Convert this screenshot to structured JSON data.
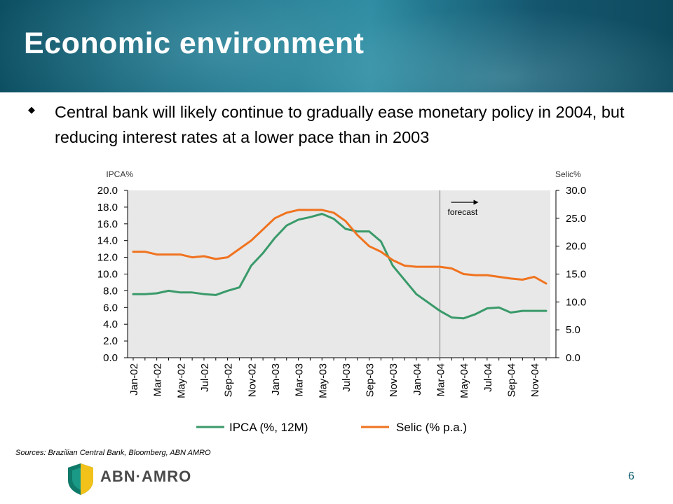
{
  "slide": {
    "title": "Economic environment",
    "bullet": "Central bank will likely continue to gradually ease monetary policy in 2004, but reducing interest rates at a lower pace than in 2003",
    "sources": "Sources: Brazilian Central Bank, Bloomberg, ABN AMRO",
    "page_number": "6",
    "logo_text": "ABN·AMRO"
  },
  "chart_data": {
    "type": "line",
    "title": "",
    "left_axis_label": "IPCA%",
    "right_axis_label": "Selic%",
    "left_ylim": [
      0,
      20
    ],
    "right_ylim": [
      0,
      30
    ],
    "left_ticks": [
      "20.0",
      "18.0",
      "16.0",
      "14.0",
      "12.0",
      "10.0",
      "8.0",
      "6.0",
      "4.0",
      "2.0",
      "0.0"
    ],
    "right_ticks": [
      "30.0",
      "25.0",
      "20.0",
      "15.0",
      "10.0",
      "5.0",
      "0.0"
    ],
    "categories": [
      "Jan-02",
      "Feb-02",
      "Mar-02",
      "Apr-02",
      "May-02",
      "Jun-02",
      "Jul-02",
      "Aug-02",
      "Sep-02",
      "Oct-02",
      "Nov-02",
      "Dec-02",
      "Jan-03",
      "Feb-03",
      "Mar-03",
      "Apr-03",
      "May-03",
      "Jun-03",
      "Jul-03",
      "Aug-03",
      "Sep-03",
      "Oct-03",
      "Nov-03",
      "Dec-03",
      "Jan-04",
      "Feb-04",
      "Mar-04",
      "Apr-04",
      "May-04",
      "Jun-04",
      "Jul-04",
      "Aug-04",
      "Sep-04",
      "Oct-04",
      "Nov-04",
      "Dec-04"
    ],
    "tick_labels": [
      "Jan-02",
      "Mar-02",
      "May-02",
      "Jul-02",
      "Sep-02",
      "Nov-02",
      "Jan-03",
      "Mar-03",
      "May-03",
      "Jul-03",
      "Sep-03",
      "Nov-03",
      "Jan-04",
      "Mar-04",
      "May-04",
      "Jul-04",
      "Sep-04",
      "Nov-04"
    ],
    "forecast_start": "Mar-04",
    "forecast_label": "forecast",
    "grid": false,
    "legend_position": "bottom",
    "colors": {
      "plot_bg": "#e8e8e8",
      "ipca": "#3a9a6a",
      "selic": "#f0731f",
      "divider": "#777777"
    },
    "series": [
      {
        "name": "IPCA (%, 12M)",
        "axis": "left",
        "values": [
          7.6,
          7.6,
          7.7,
          8.0,
          7.8,
          7.8,
          7.6,
          7.5,
          8.0,
          8.4,
          11.0,
          12.5,
          14.3,
          15.8,
          16.5,
          16.8,
          17.2,
          16.6,
          15.4,
          15.1,
          15.1,
          13.9,
          11.0,
          9.3,
          7.6,
          6.6,
          5.6,
          4.8,
          4.7,
          5.2,
          5.9,
          6.0,
          5.4,
          5.6,
          5.6,
          5.6
        ]
      },
      {
        "name": "Selic (% p.a.)",
        "axis": "right",
        "values": [
          19.0,
          19.0,
          18.5,
          18.5,
          18.5,
          18.0,
          18.2,
          17.7,
          18.0,
          19.5,
          21.0,
          23.0,
          25.0,
          26.0,
          26.5,
          26.5,
          26.5,
          26.0,
          24.5,
          22.0,
          20.0,
          19.0,
          17.5,
          16.5,
          16.3,
          16.3,
          16.3,
          16.0,
          15.0,
          14.8,
          14.8,
          14.5,
          14.2,
          14.0,
          14.5,
          13.3
        ]
      }
    ]
  }
}
